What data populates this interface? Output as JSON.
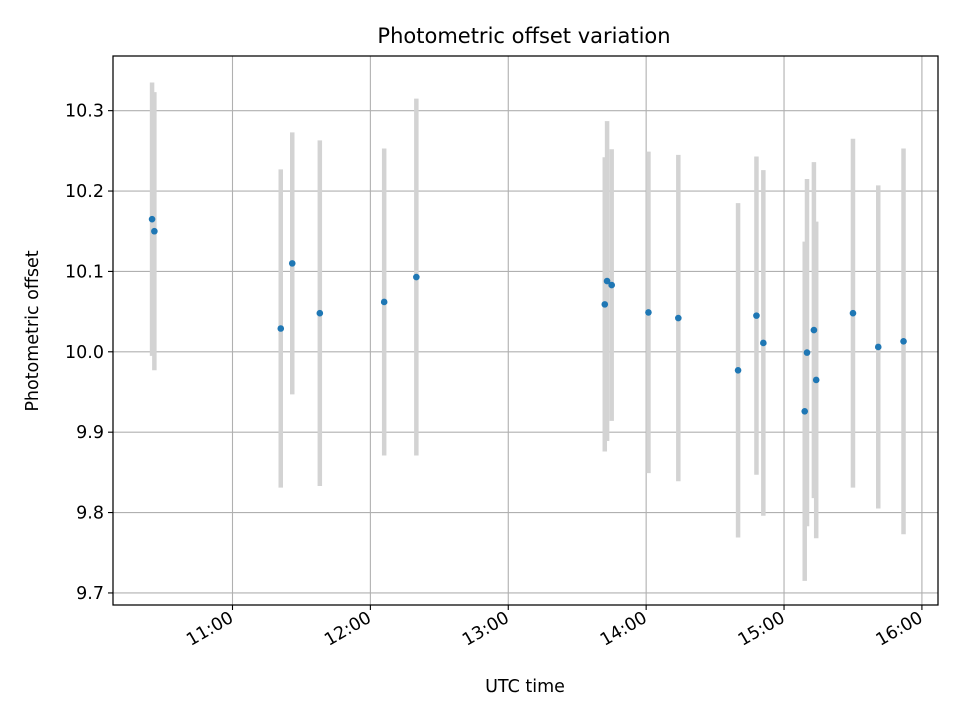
{
  "chart_data": {
    "type": "scatter",
    "title": "Photometric offset variation",
    "xlabel": "UTC time",
    "ylabel": "Photometric offset",
    "grid": true,
    "legend": "none",
    "xlim": [
      "10:08",
      "16:07"
    ],
    "ylim": [
      9.685,
      10.368
    ],
    "x_ticks": [
      "11:00",
      "12:00",
      "13:00",
      "14:00",
      "15:00",
      "16:00"
    ],
    "y_ticks": [
      "9.7",
      "9.8",
      "9.9",
      "10.0",
      "10.1",
      "10.2",
      "10.3"
    ],
    "series": [
      {
        "marker_color": "#1f77b4",
        "errorbar_color": "#d3d3d3",
        "points": [
          {
            "x": "10:25",
            "y": 10.165,
            "yerr": 0.17
          },
          {
            "x": "10:26",
            "y": 10.15,
            "yerr": 0.173
          },
          {
            "x": "11:21",
            "y": 10.029,
            "yerr": 0.198
          },
          {
            "x": "11:26",
            "y": 10.11,
            "yerr": 0.163
          },
          {
            "x": "11:38",
            "y": 10.048,
            "yerr": 0.215
          },
          {
            "x": "12:06",
            "y": 10.062,
            "yerr": 0.191
          },
          {
            "x": "12:20",
            "y": 10.093,
            "yerr": 0.222
          },
          {
            "x": "13:42",
            "y": 10.059,
            "yerr": 0.183
          },
          {
            "x": "13:43",
            "y": 10.088,
            "yerr": 0.199
          },
          {
            "x": "13:45",
            "y": 10.083,
            "yerr": 0.169
          },
          {
            "x": "14:01",
            "y": 10.049,
            "yerr": 0.2
          },
          {
            "x": "14:14",
            "y": 10.042,
            "yerr": 0.203
          },
          {
            "x": "14:40",
            "y": 9.977,
            "yerr": 0.208
          },
          {
            "x": "14:48",
            "y": 10.045,
            "yerr": 0.198
          },
          {
            "x": "14:51",
            "y": 10.011,
            "yerr": 0.215
          },
          {
            "x": "15:09",
            "y": 9.926,
            "yerr": 0.211
          },
          {
            "x": "15:10",
            "y": 9.999,
            "yerr": 0.216
          },
          {
            "x": "15:13",
            "y": 10.027,
            "yerr": 0.209
          },
          {
            "x": "15:14",
            "y": 9.965,
            "yerr": 0.197
          },
          {
            "x": "15:30",
            "y": 10.048,
            "yerr": 0.217
          },
          {
            "x": "15:41",
            "y": 10.006,
            "yerr": 0.201
          },
          {
            "x": "15:52",
            "y": 10.013,
            "yerr": 0.24
          }
        ]
      }
    ]
  }
}
